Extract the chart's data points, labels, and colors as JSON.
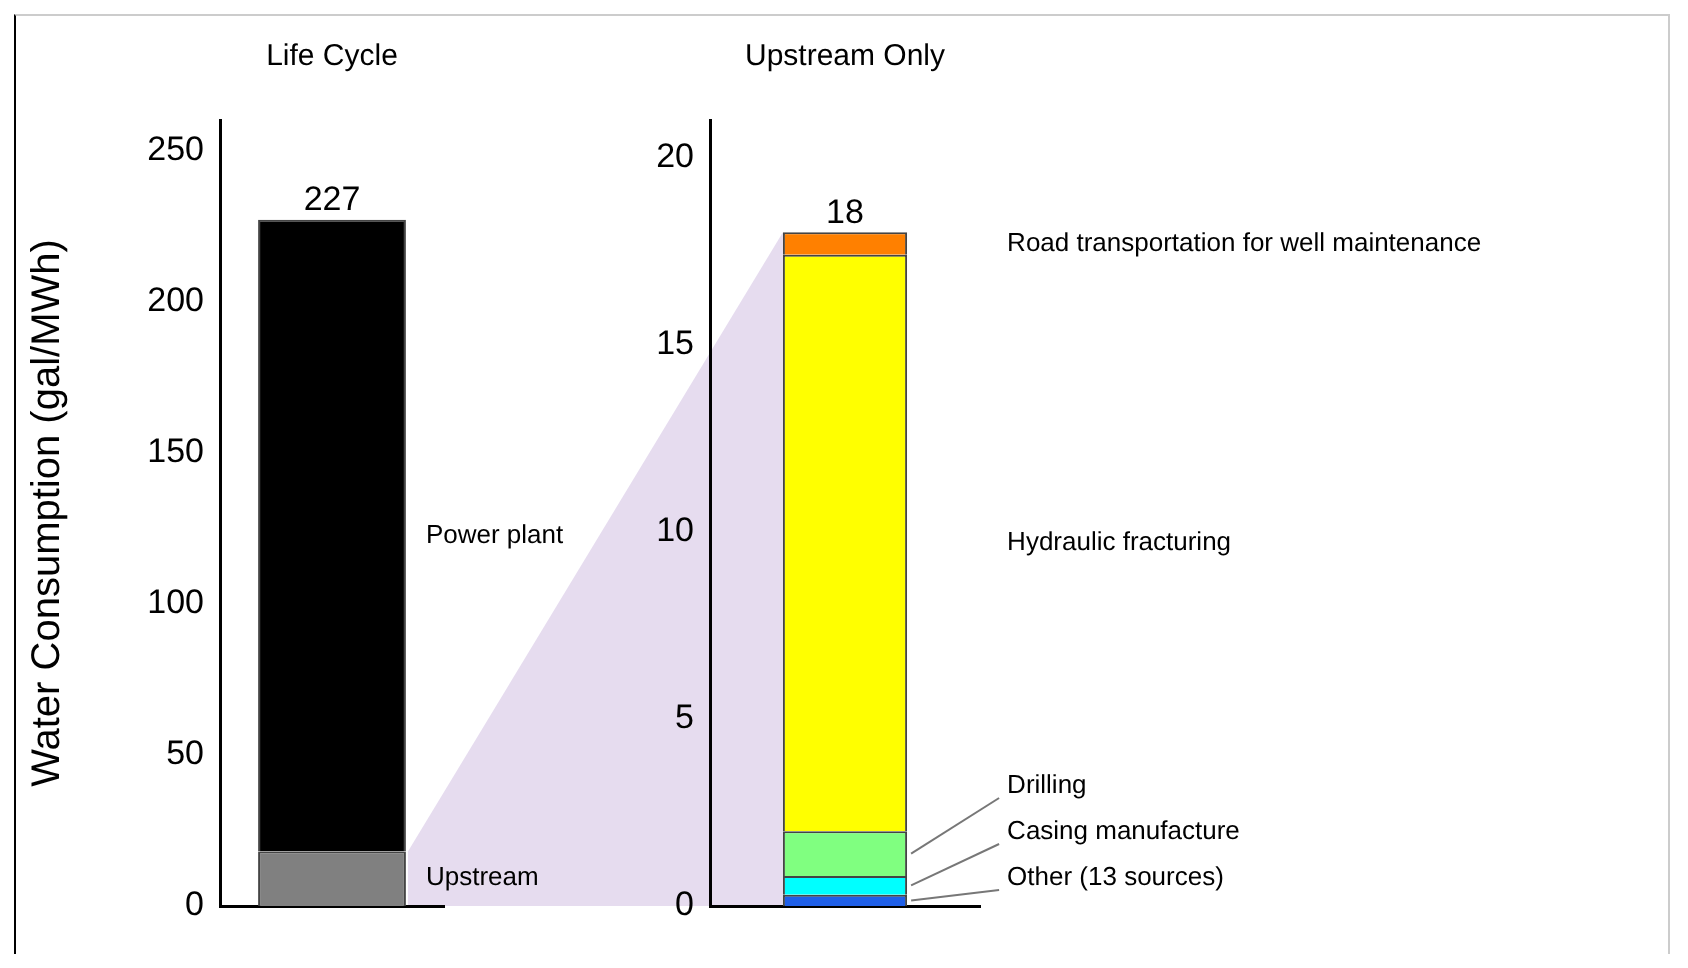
{
  "chart_data": [
    {
      "type": "bar",
      "title": "Life Cycle",
      "ylabel": "Water Consumption (gal/MWh)",
      "categories": [
        null
      ],
      "stacked": true,
      "series": [
        {
          "name": "Upstream",
          "color": "#808080",
          "values": [
            18
          ]
        },
        {
          "name": "Power plant",
          "color": "#000000",
          "values": [
            209
          ]
        }
      ],
      "totals": [
        "227"
      ],
      "ylim": [
        0,
        260
      ],
      "yticks": [
        0,
        50,
        100,
        150,
        200,
        250
      ]
    },
    {
      "type": "bar",
      "title": "Upstream Only",
      "categories": [
        null
      ],
      "stacked": true,
      "series": [
        {
          "name": "Other (13 sources)",
          "color": "#1f5fe8",
          "values": [
            0.3
          ]
        },
        {
          "name": "Casing manufacture",
          "color": "#00ffff",
          "values": [
            0.5
          ]
        },
        {
          "name": "Drilling",
          "color": "#80ff80",
          "values": [
            1.2
          ]
        },
        {
          "name": "Hydraulic fracturing",
          "color": "#ffff00",
          "values": [
            15.4
          ]
        },
        {
          "name": "Road transportation for well maintenance",
          "color": "#ff8000",
          "values": [
            0.6
          ]
        }
      ],
      "totals": [
        "18"
      ],
      "ylim": [
        0,
        21
      ],
      "yticks": [
        0,
        5,
        10,
        15,
        20
      ]
    }
  ]
}
